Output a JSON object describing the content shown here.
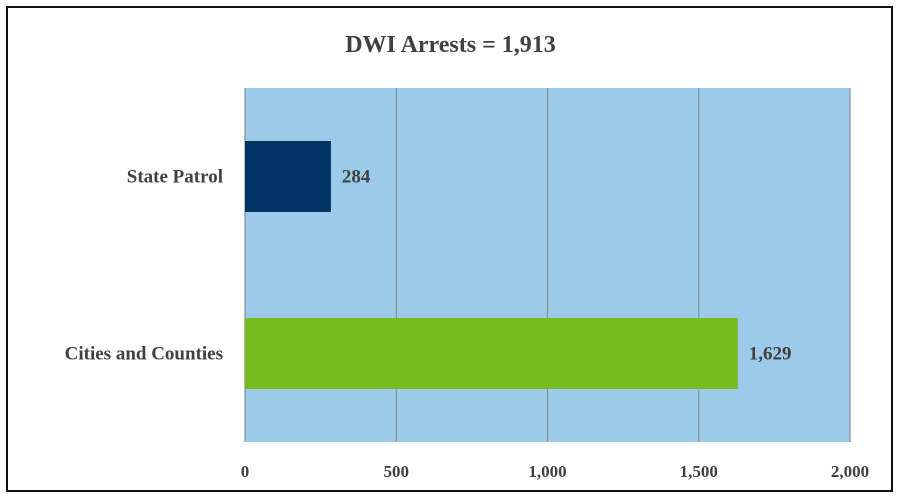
{
  "chart_data": {
    "type": "bar",
    "orientation": "horizontal",
    "title": "DWI Arrests = 1,913",
    "categories": [
      "State Patrol",
      "Cities and Counties"
    ],
    "values": [
      284,
      1629
    ],
    "value_labels": [
      "284",
      "1,629"
    ],
    "bar_colors": [
      "#003462",
      "#76bb20"
    ],
    "plot_background": "#9ccbea",
    "gridline_color": "#8c8c8c",
    "xlim": [
      0,
      2000
    ],
    "x_ticks": [
      0,
      500,
      1000,
      1500,
      2000
    ],
    "x_tick_labels": [
      "0",
      "500",
      "1,000",
      "1,500",
      "2,000"
    ],
    "grid": true,
    "legend": "none"
  }
}
